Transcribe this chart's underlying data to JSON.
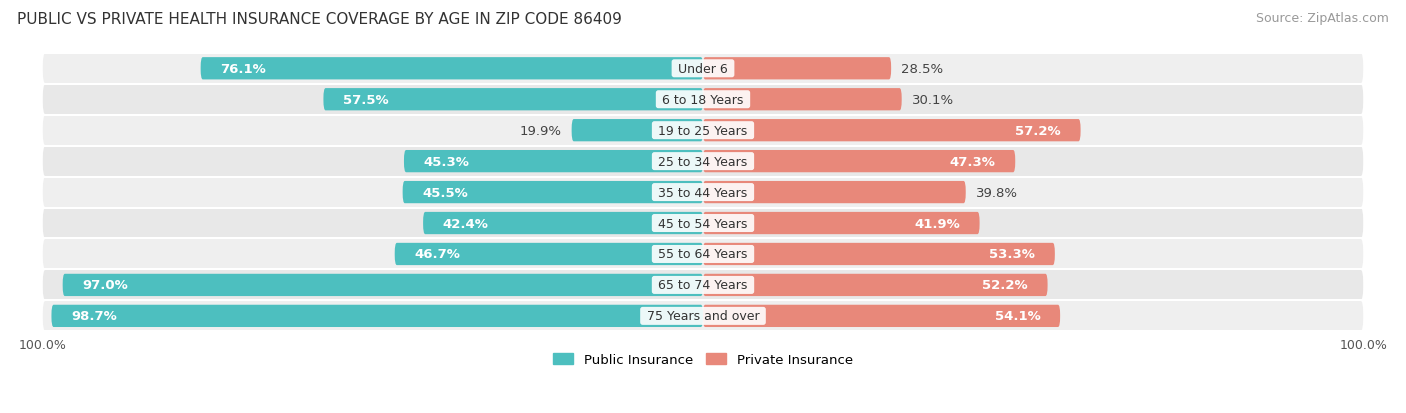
{
  "title": "PUBLIC VS PRIVATE HEALTH INSURANCE COVERAGE BY AGE IN ZIP CODE 86409",
  "source": "Source: ZipAtlas.com",
  "categories": [
    "Under 6",
    "6 to 18 Years",
    "19 to 25 Years",
    "25 to 34 Years",
    "35 to 44 Years",
    "45 to 54 Years",
    "55 to 64 Years",
    "65 to 74 Years",
    "75 Years and over"
  ],
  "public_values": [
    76.1,
    57.5,
    19.9,
    45.3,
    45.5,
    42.4,
    46.7,
    97.0,
    98.7
  ],
  "private_values": [
    28.5,
    30.1,
    57.2,
    47.3,
    39.8,
    41.9,
    53.3,
    52.2,
    54.1
  ],
  "public_color": "#4DBFBF",
  "private_color": "#E8887A",
  "private_color_light": "#F0A898",
  "public_label": "Public Insurance",
  "private_label": "Private Insurance",
  "row_bg": "#E8E8E8",
  "row_bg_dark": "#DCDCDC",
  "max_value": 100.0,
  "bar_height": 0.72,
  "label_fontsize": 9.5,
  "title_fontsize": 11,
  "source_fontsize": 9,
  "axis_label_fontsize": 9,
  "category_fontsize": 9,
  "white_text_threshold": 40
}
